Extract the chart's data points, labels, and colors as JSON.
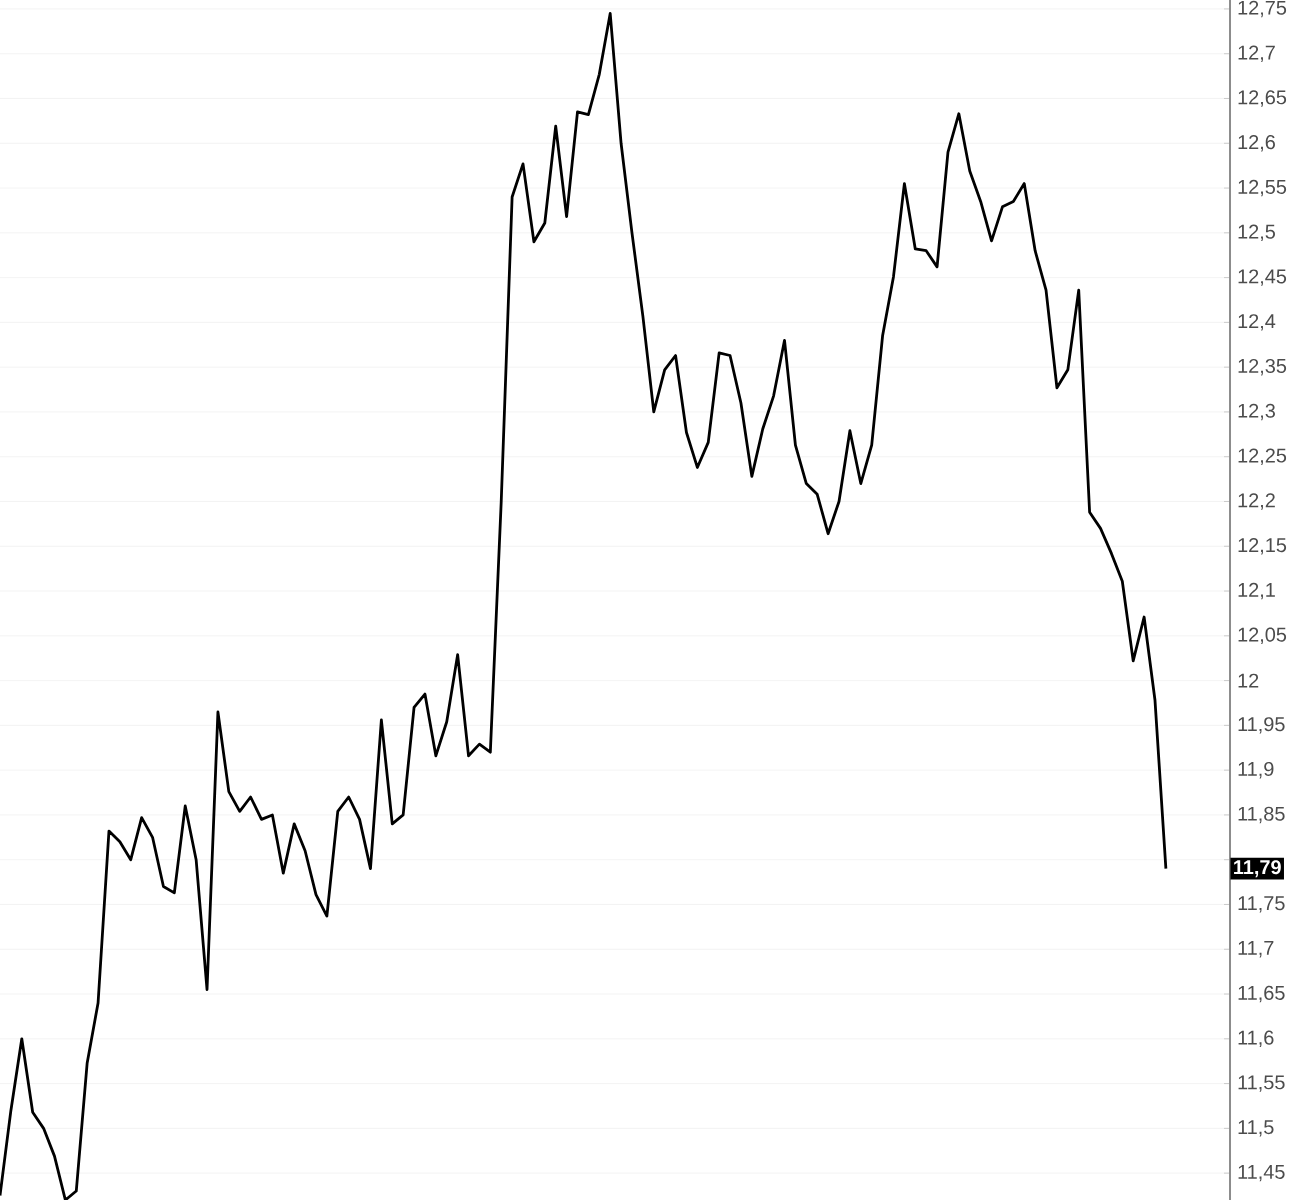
{
  "chart_data": {
    "type": "line",
    "color": "#000000",
    "categories": [
      null,
      null,
      null,
      null,
      null,
      null,
      null,
      null,
      null,
      null,
      null,
      null,
      null,
      null,
      null,
      null,
      null,
      null,
      null,
      null,
      null,
      null,
      null,
      null,
      null,
      null,
      null,
      null,
      null,
      null,
      null,
      null,
      null,
      null,
      null,
      null,
      null,
      null,
      null,
      null,
      null,
      null,
      null,
      null,
      null,
      null,
      null,
      null,
      null,
      null,
      null,
      null,
      null,
      null,
      null,
      null,
      null,
      null,
      null,
      null,
      null,
      null,
      null,
      null,
      null,
      null,
      null,
      null,
      null,
      null,
      null,
      null,
      null,
      null,
      null,
      null,
      null,
      null,
      null,
      null,
      null,
      null,
      null,
      null,
      null,
      null,
      null,
      null,
      null,
      null,
      null,
      null,
      null,
      null,
      null,
      null,
      null,
      null,
      null,
      null,
      null,
      null,
      null,
      null,
      null,
      null,
      null,
      null
    ],
    "values": [
      11.425,
      11.52,
      11.6,
      11.518,
      11.5,
      11.469,
      11.42,
      11.43,
      11.573,
      11.64,
      11.832,
      11.82,
      11.8,
      11.847,
      11.825,
      11.77,
      11.763,
      11.86,
      11.8,
      11.655,
      11.965,
      11.876,
      11.854,
      11.87,
      11.845,
      11.85,
      11.785,
      11.84,
      11.81,
      11.761,
      11.737,
      11.854,
      11.87,
      11.845,
      11.79,
      11.956,
      11.84,
      11.85,
      11.97,
      11.985,
      11.916,
      11.954,
      12.029,
      11.916,
      11.929,
      11.92,
      12.2,
      12.54,
      12.577,
      12.49,
      12.511,
      12.619,
      12.518,
      12.635,
      12.632,
      12.677,
      12.745,
      12.6,
      12.5,
      12.407,
      12.3,
      12.347,
      12.363,
      12.277,
      12.238,
      12.266,
      12.366,
      12.363,
      12.31,
      12.228,
      12.281,
      12.318,
      12.38,
      12.263,
      12.22,
      12.208,
      12.164,
      12.2,
      12.279,
      12.22,
      12.263,
      12.385,
      12.451,
      12.555,
      12.482,
      12.48,
      12.462,
      12.59,
      12.633,
      12.569,
      12.535,
      12.491,
      12.529,
      12.535,
      12.555,
      12.48,
      12.436,
      12.327,
      12.347,
      12.436,
      12.188,
      12.17,
      12.142,
      12.111,
      12.022,
      12.071,
      11.978,
      11.79
    ],
    "ylim": [
      11.42,
      12.76
    ],
    "yticks": [
      {
        "value": 11.45,
        "label": "11,45"
      },
      {
        "value": 11.5,
        "label": "11,5"
      },
      {
        "value": 11.55,
        "label": "11,55"
      },
      {
        "value": 11.6,
        "label": "11,6"
      },
      {
        "value": 11.65,
        "label": "11,65"
      },
      {
        "value": 11.7,
        "label": "11,7"
      },
      {
        "value": 11.75,
        "label": "11,75"
      },
      {
        "value": 11.8,
        "label": null
      },
      {
        "value": 11.85,
        "label": "11,85"
      },
      {
        "value": 11.9,
        "label": "11,9"
      },
      {
        "value": 11.95,
        "label": "11,95"
      },
      {
        "value": 12.0,
        "label": "12"
      },
      {
        "value": 12.05,
        "label": "12,05"
      },
      {
        "value": 12.1,
        "label": "12,1"
      },
      {
        "value": 12.15,
        "label": "12,15"
      },
      {
        "value": 12.2,
        "label": "12,2"
      },
      {
        "value": 12.25,
        "label": "12,25"
      },
      {
        "value": 12.3,
        "label": "12,3"
      },
      {
        "value": 12.35,
        "label": "12,35"
      },
      {
        "value": 12.4,
        "label": "12,4"
      },
      {
        "value": 12.45,
        "label": "12,45"
      },
      {
        "value": 12.5,
        "label": "12,5"
      },
      {
        "value": 12.55,
        "label": "12,55"
      },
      {
        "value": 12.6,
        "label": "12,6"
      },
      {
        "value": 12.65,
        "label": "12,65"
      },
      {
        "value": 12.7,
        "label": "12,7"
      },
      {
        "value": 12.75,
        "label": "12,75"
      }
    ],
    "tick_labels": "y",
    "grid": "y",
    "marker": "none",
    "line_style": "solid",
    "annotations": [
      "11,79"
    ]
  }
}
